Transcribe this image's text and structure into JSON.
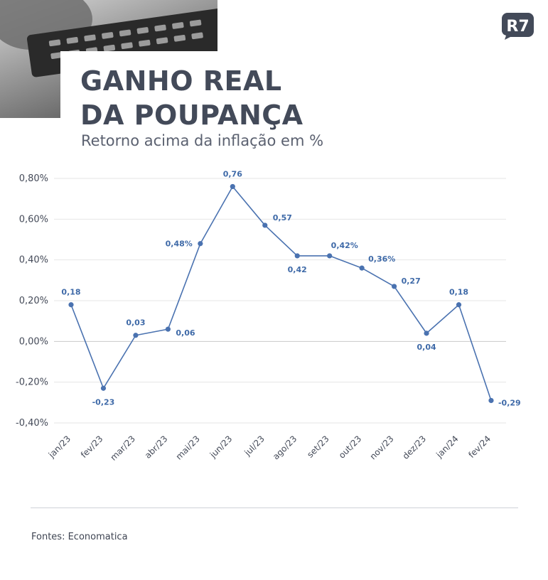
{
  "header": {
    "title_line1": "GANHO REAL",
    "title_line2": "DA POUPANÇA",
    "subtitle": "Retorno acima da inflação em %",
    "logo_text": "R7"
  },
  "footer": {
    "source": "Fontes:  Economatica"
  },
  "colors": {
    "line": "#4a72b0",
    "label": "#3f6aa8",
    "text": "#434a59",
    "grid": "#e6e6e6"
  },
  "chart_data": {
    "type": "line",
    "x": [
      "jan/23",
      "fev/23",
      "mar/23",
      "abr/23",
      "mai/23",
      "jun/23",
      "jul/23",
      "ago/23",
      "set/23",
      "out/23",
      "nov/23",
      "dez/23",
      "jan/24",
      "fev/24"
    ],
    "series": [
      {
        "values": [
          0.18,
          -0.23,
          0.03,
          0.06,
          0.48,
          0.76,
          0.57,
          0.42,
          0.42,
          0.36,
          0.27,
          0.04,
          0.18,
          -0.29
        ]
      }
    ],
    "data_labels": [
      "0,18",
      "-0,23",
      "0,03",
      "0,06",
      "0,48%",
      "0,76",
      "0,57",
      "0,42",
      "0,42%",
      "0,36%",
      "0,27",
      "0,04",
      "0,18",
      "-0,29"
    ],
    "label_positions": [
      "above",
      "below",
      "above",
      "right",
      "left",
      "above",
      "right",
      "below",
      "right",
      "right",
      "right",
      "below",
      "above",
      "right"
    ],
    "yticks": [
      0.8,
      0.6,
      0.4,
      0.2,
      0.0,
      -0.2,
      -0.4
    ],
    "ytick_labels": [
      "0,80%",
      "0,60%",
      "0,40%",
      "0,20%",
      "0,00%",
      "-0,20%",
      "-0,40%"
    ],
    "ylim": [
      -0.4,
      0.8
    ],
    "grid": true,
    "title": "GANHO REAL DA POUPANÇA",
    "subtitle": "Retorno acima da inflação em %"
  }
}
